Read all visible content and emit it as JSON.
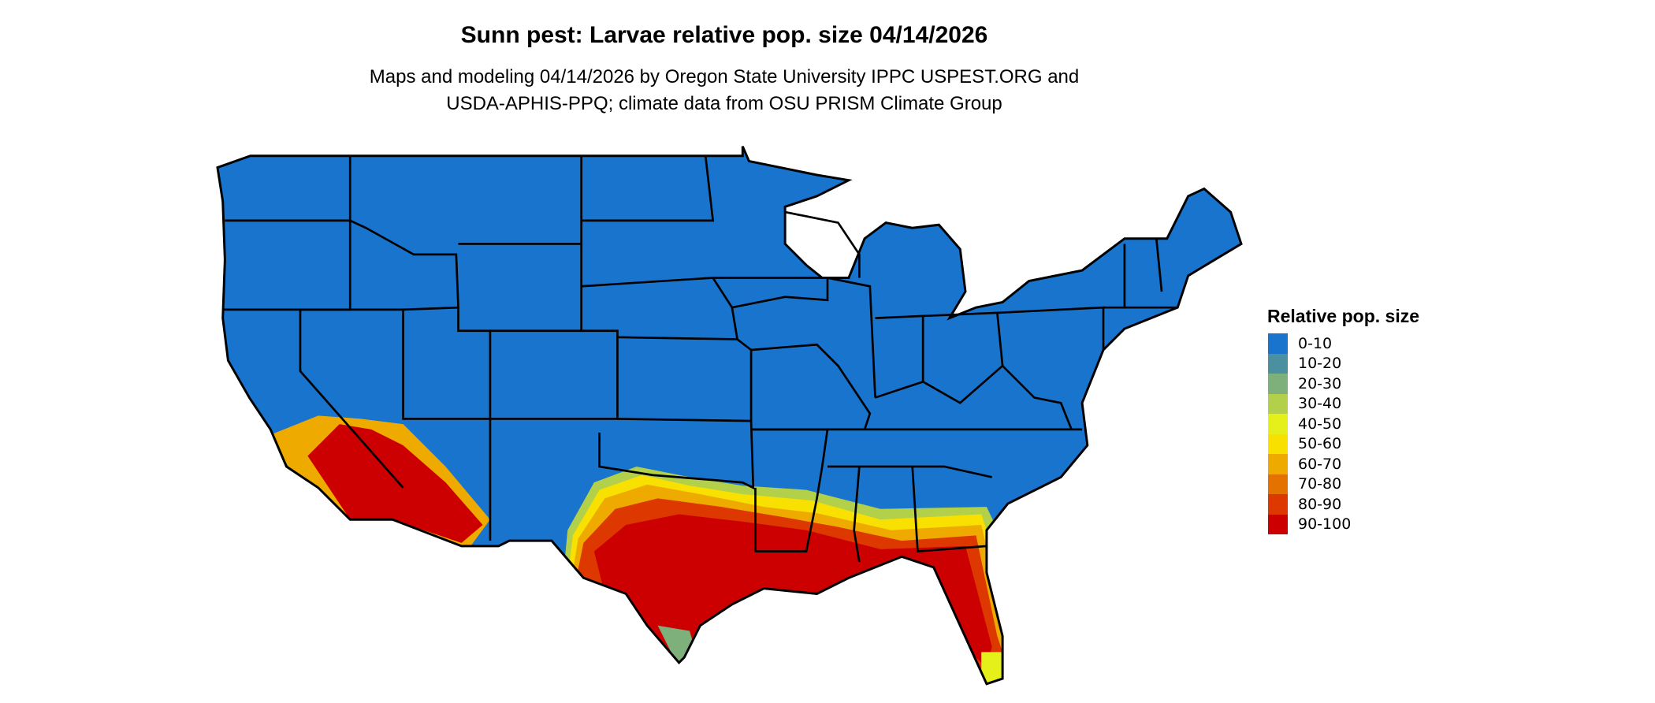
{
  "title": "Sunn pest: Larvae relative pop. size 04/14/2026",
  "subtitle_lines": [
    "Maps and modeling 04/14/2026 by Oregon State University IPPC USPEST.ORG and",
    "USDA-APHIS-PPQ; climate data from OSU PRISM Climate Group"
  ],
  "legend": {
    "title": "Relative pop. size",
    "items": [
      {
        "label": "0-10",
        "color": "#1874CD"
      },
      {
        "label": "10-20",
        "color": "#4A90A0"
      },
      {
        "label": "20-30",
        "color": "#7DB07A"
      },
      {
        "label": "30-40",
        "color": "#B2D04A"
      },
      {
        "label": "40-50",
        "color": "#E5EF1A"
      },
      {
        "label": "50-60",
        "color": "#F8E000"
      },
      {
        "label": "60-70",
        "color": "#EFAA00"
      },
      {
        "label": "70-80",
        "color": "#E37200"
      },
      {
        "label": "80-90",
        "color": "#DC3800"
      },
      {
        "label": "90-100",
        "color": "#CC0000"
      }
    ]
  },
  "map": {
    "region": "Contiguous United States",
    "base_class": "0-10",
    "high_classes_regions": [
      "southern Arizona / southeastern California",
      "Texas",
      "Gulf Coast",
      "Florida"
    ]
  }
}
